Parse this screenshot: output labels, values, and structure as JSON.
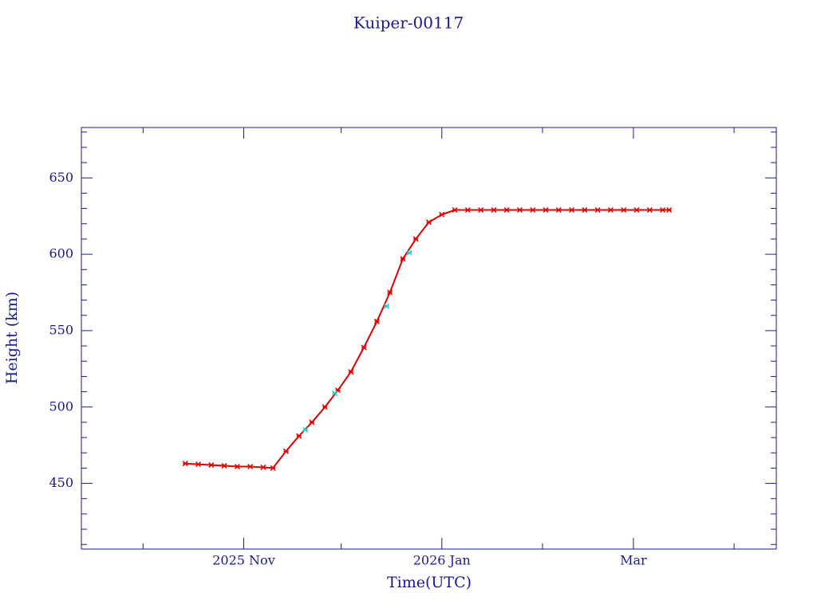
{
  "chart_data": {
    "type": "scatter",
    "title": "Kuiper-00117",
    "x_label": "Time(UTC)",
    "y_label": "Height (km)",
    "xlim": [
      "2025-09-12",
      "2026-04-14"
    ],
    "xticks": [
      {
        "value": "2025-11-01",
        "label": "2025 Nov"
      },
      {
        "value": "2026-01-01",
        "label": "2026 Jan"
      },
      {
        "value": "2026-03-01",
        "label": "Mar"
      }
    ],
    "xminorticks": [
      "2025-10-01",
      "2025-12-01",
      "2026-02-01",
      "2026-04-01"
    ],
    "ylim": [
      407,
      683
    ],
    "yticks": [
      450,
      500,
      550,
      600,
      650
    ],
    "yminorticks": [
      410,
      420,
      430,
      440,
      460,
      470,
      480,
      490,
      510,
      520,
      530,
      540,
      560,
      570,
      580,
      590,
      610,
      620,
      630,
      640,
      660,
      670,
      680
    ],
    "series": [
      {
        "color": "#e00000",
        "x": [
          "2025-10-14",
          "2025-10-18",
          "2025-10-22",
          "2025-10-26",
          "2025-10-30",
          "2025-11-03",
          "2025-11-07",
          "2025-11-10",
          "2025-11-14",
          "2025-11-18",
          "2025-11-22",
          "2025-11-26",
          "2025-11-30",
          "2025-12-04",
          "2025-12-08",
          "2025-12-12",
          "2025-12-16",
          "2025-12-20",
          "2025-12-24",
          "2025-12-28",
          "2026-01-01",
          "2026-01-05",
          "2026-01-09",
          "2026-01-13",
          "2026-01-17",
          "2026-01-21",
          "2026-01-25",
          "2026-01-29",
          "2026-02-02",
          "2026-02-06",
          "2026-02-10",
          "2026-02-14",
          "2026-02-18",
          "2026-02-22",
          "2026-02-26",
          "2026-03-02",
          "2026-03-06",
          "2026-03-10",
          "2026-03-12"
        ],
        "values": [
          463,
          462.5,
          462,
          461.5,
          461,
          461,
          460.5,
          460,
          471,
          481,
          490,
          500,
          511,
          523,
          539,
          556,
          575,
          597,
          610,
          621,
          626,
          629,
          629,
          629,
          629,
          629,
          629,
          629,
          629,
          629,
          629,
          629,
          629,
          629,
          629,
          629,
          629,
          629,
          629
        ]
      },
      {
        "color": "#20d0d0",
        "x": [
          "2025-11-20",
          "2025-11-29",
          "2025-12-15",
          "2025-12-22"
        ],
        "values": [
          485,
          509,
          566,
          601
        ]
      }
    ]
  }
}
